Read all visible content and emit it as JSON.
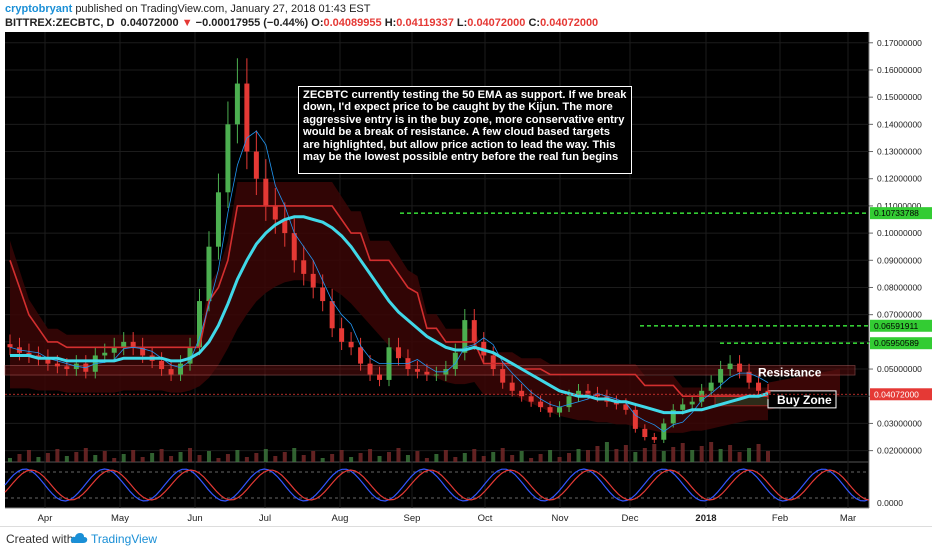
{
  "header": {
    "author": "cryptobryant",
    "published": "published on TradingView.com, January 27, 2018 01:43 EST",
    "symbol": "BITTREX:ZECBTC, D",
    "last": "0.04072000",
    "change_arrow": "▼",
    "change": "−0.00017955 (−0.44%)",
    "ohlc_labels": {
      "o": "O:",
      "h": "H:",
      "l": "L:",
      "c": "C:"
    },
    "ohlc_values": {
      "o": "0.04089955",
      "h": "0.04119337",
      "l": "0.04072000",
      "c": "0.04072000"
    }
  },
  "footer": {
    "created": "Created with",
    "brand": "TradingView",
    "logo_icon": "tradingview-cloud-icon"
  },
  "colors": {
    "background": "#000000",
    "candle_up": "#4caf50",
    "candle_down": "#e53935",
    "ema": "#40d8e8",
    "kijun": "#d32f2f",
    "tenkan": "#2196f3",
    "target_line": "#33cc33",
    "price_line": "#e53935"
  },
  "chart_data": {
    "type": "candlestick",
    "y_axis": {
      "min": 0.0,
      "max": 0.17,
      "price_ticks": [
        "0.17000000",
        "0.16000000",
        "0.15000000",
        "0.14000000",
        "0.13000000",
        "0.12000000",
        "0.11000000",
        "0.10000000",
        "0.09000000",
        "0.08000000",
        "0.07000000",
        "0.06000000",
        "0.05000000",
        "0.04000000",
        "0.03000000",
        "0.02000000"
      ],
      "oscillator_tick": "0.0000"
    },
    "x_axis": {
      "labels": [
        "Apr",
        "May",
        "Jun",
        "Jul",
        "Aug",
        "Sep",
        "Oct",
        "Nov",
        "Dec",
        "2018",
        "Feb",
        "Mar"
      ]
    },
    "annotation": "ZECBTC currently testing the 50 EMA as support. If we break down, I'd expect price to be caught by the Kijun. The more aggressive entry is in the buy zone, more conservative entry would be a break of resistance. A few cloud based targets are highlighted, but allow price action to lead the way. This may be the lowest possible entry before the real fun begins",
    "levels": {
      "targets": [
        {
          "value": 0.10733788,
          "label": "0.10733788"
        },
        {
          "value": 0.06591911,
          "label": "0.06591911"
        },
        {
          "value": 0.05950589,
          "label": "0.05950589"
        }
      ],
      "current": {
        "value": 0.04072,
        "label": "0.04072000"
      },
      "resistance": {
        "low": 0.0478,
        "high": 0.0513,
        "label": "Resistance"
      },
      "buy_zone": {
        "low": 0.0365,
        "high": 0.0405,
        "label": "Buy Zone"
      }
    },
    "closes": [
      0.058,
      0.056,
      0.055,
      0.054,
      0.052,
      0.051,
      0.05,
      0.052,
      0.049,
      0.055,
      0.056,
      0.058,
      0.06,
      0.058,
      0.055,
      0.053,
      0.05,
      0.048,
      0.052,
      0.058,
      0.075,
      0.095,
      0.115,
      0.14,
      0.155,
      0.13,
      0.12,
      0.11,
      0.105,
      0.1,
      0.09,
      0.085,
      0.08,
      0.075,
      0.065,
      0.06,
      0.058,
      0.052,
      0.048,
      0.046,
      0.058,
      0.054,
      0.05,
      0.049,
      0.048,
      0.048,
      0.05,
      0.056,
      0.068,
      0.06,
      0.055,
      0.05,
      0.045,
      0.042,
      0.04,
      0.038,
      0.036,
      0.034,
      0.036,
      0.04,
      0.042,
      0.041,
      0.04,
      0.038,
      0.037,
      0.035,
      0.028,
      0.025,
      0.024,
      0.03,
      0.035,
      0.037,
      0.038,
      0.042,
      0.045,
      0.05,
      0.052,
      0.049,
      0.045,
      0.042,
      0.041
    ],
    "ema50": [
      0.055,
      0.055,
      0.055,
      0.054,
      0.054,
      0.054,
      0.053,
      0.053,
      0.053,
      0.053,
      0.053,
      0.053,
      0.054,
      0.054,
      0.054,
      0.054,
      0.054,
      0.053,
      0.053,
      0.054,
      0.056,
      0.06,
      0.066,
      0.074,
      0.083,
      0.09,
      0.096,
      0.1,
      0.103,
      0.105,
      0.106,
      0.106,
      0.105,
      0.104,
      0.102,
      0.099,
      0.095,
      0.09,
      0.085,
      0.08,
      0.075,
      0.071,
      0.068,
      0.065,
      0.062,
      0.06,
      0.058,
      0.057,
      0.057,
      0.058,
      0.057,
      0.056,
      0.054,
      0.052,
      0.05,
      0.048,
      0.046,
      0.044,
      0.042,
      0.041,
      0.04,
      0.04,
      0.039,
      0.039,
      0.038,
      0.038,
      0.037,
      0.036,
      0.035,
      0.034,
      0.034,
      0.034,
      0.035,
      0.035,
      0.036,
      0.037,
      0.038,
      0.039,
      0.04,
      0.04,
      0.041
    ],
    "kijun": [
      0.09,
      0.08,
      0.07,
      0.065,
      0.06,
      0.06,
      0.058,
      0.058,
      0.058,
      0.058,
      0.058,
      0.058,
      0.058,
      0.058,
      0.058,
      0.058,
      0.058,
      0.058,
      0.058,
      0.058,
      0.058,
      0.075,
      0.08,
      0.09,
      0.11,
      0.11,
      0.11,
      0.11,
      0.11,
      0.11,
      0.11,
      0.11,
      0.11,
      0.11,
      0.11,
      0.105,
      0.1,
      0.1,
      0.09,
      0.09,
      0.09,
      0.085,
      0.08,
      0.078,
      0.065,
      0.065,
      0.06,
      0.06,
      0.06,
      0.06,
      0.052,
      0.052,
      0.052,
      0.052,
      0.05,
      0.05,
      0.05,
      0.048,
      0.048,
      0.048,
      0.048,
      0.048,
      0.048,
      0.048,
      0.048,
      0.048,
      0.048,
      0.044,
      0.044,
      0.044,
      0.044,
      0.04,
      0.04,
      0.04,
      0.04,
      0.04,
      0.04,
      0.04,
      0.04,
      0.04,
      0.04
    ],
    "series": [
      {
        "name": "",
        "values": []
      }
    ]
  }
}
